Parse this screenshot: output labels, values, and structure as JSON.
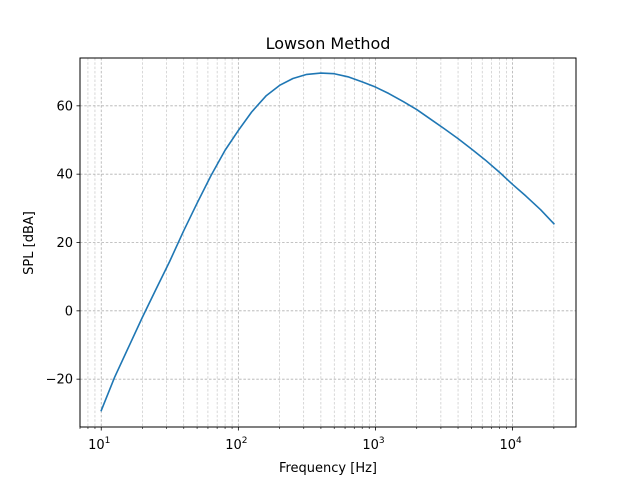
{
  "chart_data": {
    "type": "line",
    "title": "Lowson Method",
    "xlabel": "Frequency [Hz]",
    "ylabel": "SPL [dBA]",
    "x_scale": "log",
    "xlim": [
      7.0,
      29000
    ],
    "ylim": [
      -34,
      74
    ],
    "grid": "major and minor, dashed",
    "x_tick_values": [
      10,
      100,
      1000,
      10000
    ],
    "x_tick_labels": [
      {
        "base": "10",
        "exp": "1"
      },
      {
        "base": "10",
        "exp": "2"
      },
      {
        "base": "10",
        "exp": "3"
      },
      {
        "base": "10",
        "exp": "4"
      }
    ],
    "y_ticks": [
      -20,
      0,
      20,
      40,
      60
    ],
    "y_tick_labels": [
      "−20",
      "0",
      "20",
      "40",
      "60"
    ],
    "colors": {
      "line": "#1f77b4",
      "grid": "#b0b0b0"
    },
    "series": [
      {
        "x": [
          10,
          12.5,
          16,
          20,
          25,
          31.5,
          40,
          50,
          63,
          80,
          100,
          125,
          160,
          200,
          250,
          315,
          400,
          500,
          630,
          800,
          1000,
          1250,
          1600,
          2000,
          2500,
          3150,
          4000,
          5000,
          6300,
          8000,
          10000,
          12500,
          16000,
          20000
        ],
        "y": [
          -29.2,
          -19.5,
          -10.2,
          -1.8,
          6.2,
          14.4,
          23.5,
          31.5,
          39.5,
          47.0,
          52.8,
          58.2,
          63.0,
          66.0,
          68.0,
          69.2,
          69.6,
          69.4,
          68.5,
          67.0,
          65.5,
          63.6,
          61.2,
          58.9,
          56.2,
          53.4,
          50.4,
          47.4,
          44.2,
          40.6,
          37.0,
          33.6,
          29.6,
          25.5
        ]
      }
    ]
  }
}
